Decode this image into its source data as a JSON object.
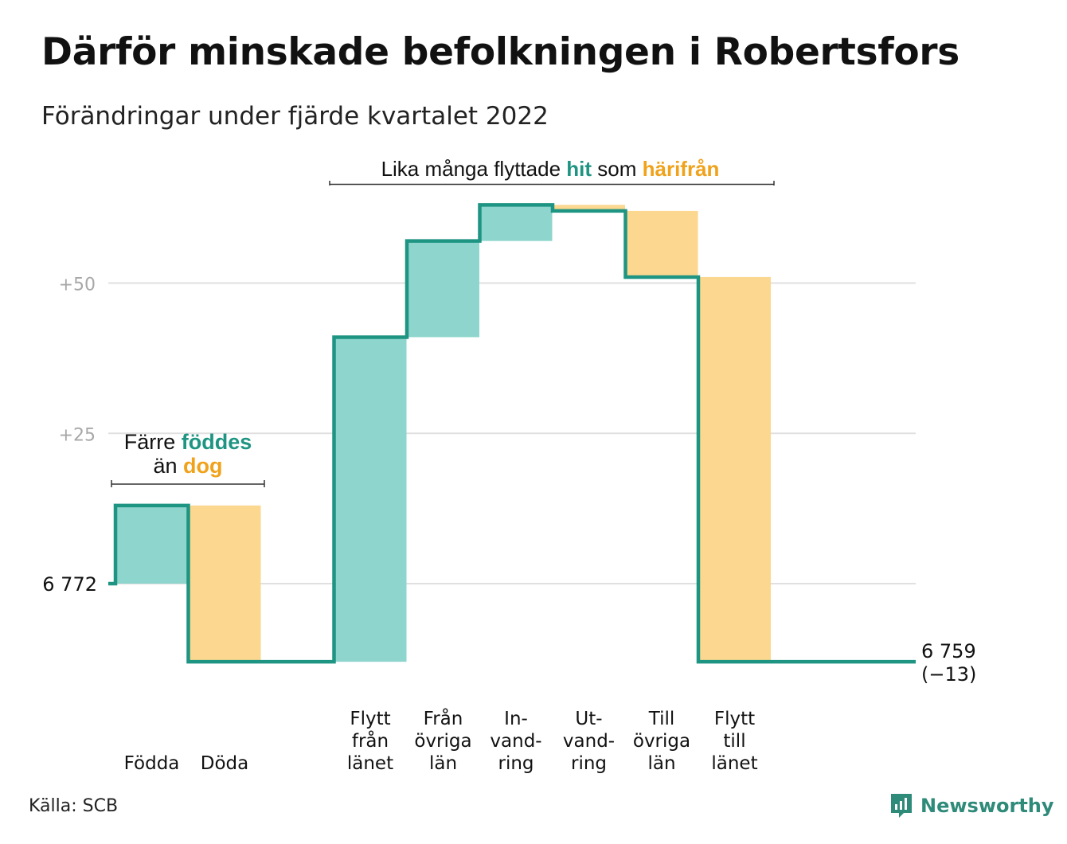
{
  "title": "Därför minskade befolkningen i Robertsfors",
  "subtitle": "Förändringar under fjärde kvartalet 2022",
  "source": "Källa: SCB",
  "brand": "Newsworthy",
  "colors": {
    "in": "#8dd5cd",
    "out": "#fbd78f",
    "line": "#1e9482",
    "accentIn": "#1e9482",
    "accentOut": "#f0a21a",
    "grid": "#e0e0e0",
    "tick": "#a8a8a8"
  },
  "chart_data": {
    "type": "waterfall",
    "start_value": 6772,
    "end_value": 6759,
    "ylim": [
      -15,
      65
    ],
    "yticks": [
      {
        "value": 0,
        "label": "6 772"
      },
      {
        "value": 25,
        "label": "+25"
      },
      {
        "value": 50,
        "label": "+50"
      }
    ],
    "steps": [
      {
        "label": [
          "Födda"
        ],
        "change": 13,
        "kind": "in"
      },
      {
        "label": [
          "Döda"
        ],
        "change": -26,
        "kind": "out"
      },
      {
        "label": [],
        "change": 0,
        "kind": "none"
      },
      {
        "label": [
          "Flytt",
          "från",
          "länet"
        ],
        "change": 54,
        "kind": "in"
      },
      {
        "label": [
          "Från",
          "övriga",
          "län"
        ],
        "change": 16,
        "kind": "in"
      },
      {
        "label": [
          "In-",
          "vand-",
          "ring"
        ],
        "change": 6,
        "kind": "in"
      },
      {
        "label": [
          "Ut-",
          "vand-",
          "ring"
        ],
        "change": -1,
        "kind": "out"
      },
      {
        "label": [
          "Till",
          "övriga",
          "län"
        ],
        "change": -11,
        "kind": "out"
      },
      {
        "label": [
          "Flytt",
          "till",
          "länet"
        ],
        "change": -64,
        "kind": "out"
      },
      {
        "label": [],
        "change": 0,
        "kind": "none"
      }
    ],
    "end_labels": [
      "6 759",
      "(−13)"
    ],
    "annotations": [
      {
        "parts": [
          {
            "text": "Lika många flyttade ",
            "style": "plain"
          },
          {
            "text": "hit",
            "style": "in"
          },
          {
            "text": " som ",
            "style": "plain"
          },
          {
            "text": "härifrån",
            "style": "out"
          }
        ]
      },
      {
        "lines": [
          [
            {
              "text": "Färre ",
              "style": "plain"
            },
            {
              "text": "föddes",
              "style": "in"
            }
          ],
          [
            {
              "text": "än ",
              "style": "plain"
            },
            {
              "text": "dog",
              "style": "out"
            }
          ]
        ]
      }
    ]
  }
}
